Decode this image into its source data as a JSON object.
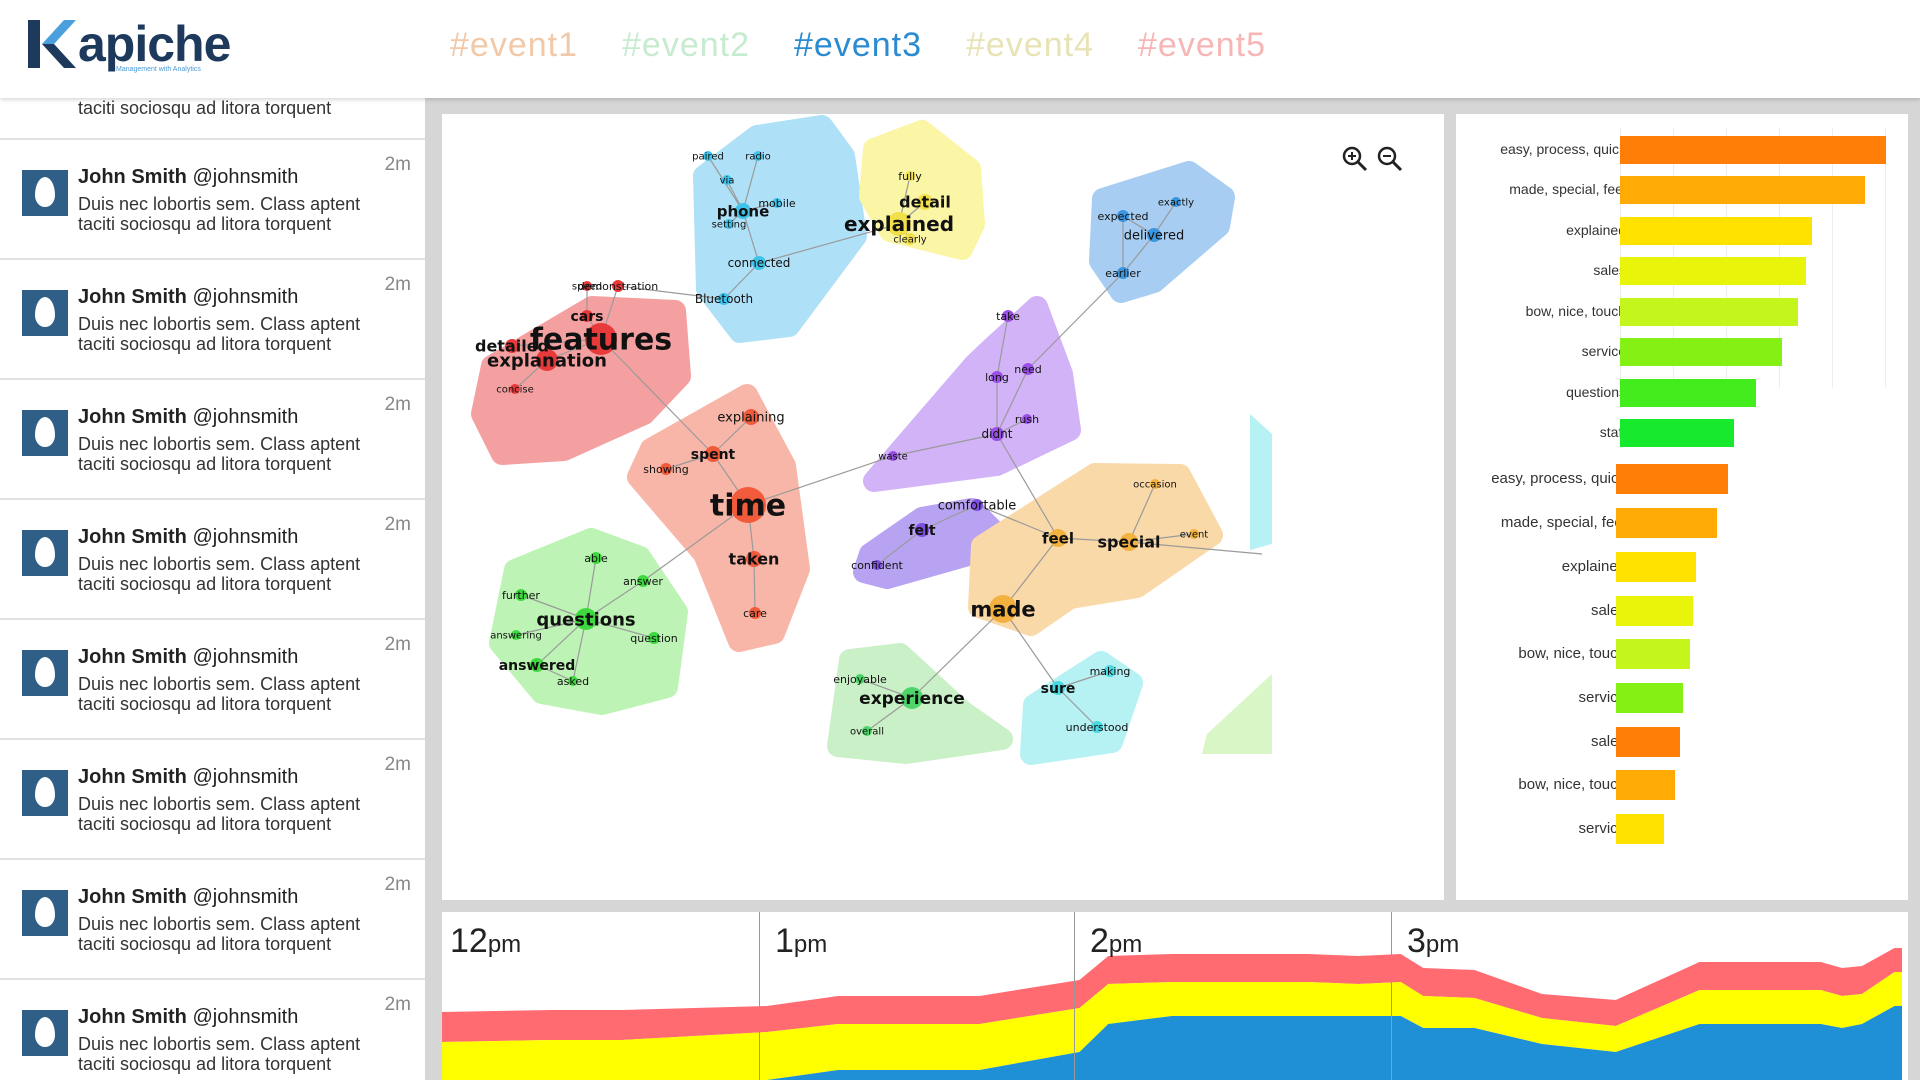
{
  "header": {
    "brand": "Kapiche",
    "brand_display": "apiche",
    "tagline": "Management with Analytics",
    "events": [
      {
        "label": "#event1",
        "color": "#f2c9a8"
      },
      {
        "label": "#event2",
        "color": "#c6ebcf"
      },
      {
        "label": "#event3",
        "color": "#2b8bd1"
      },
      {
        "label": "#event4",
        "color": "#e8e3b4"
      },
      {
        "label": "#event5",
        "color": "#f6b6b6"
      }
    ]
  },
  "feed": {
    "top_partial_text": "taciti sociosqu ad litora torquent",
    "items": [
      {
        "name": "John Smith",
        "handle": "@johnsmith",
        "time": "2m",
        "text": "Duis nec lobortis sem. Class aptent taciti sociosqu ad litora torquent"
      },
      {
        "name": "John Smith",
        "handle": "@johnsmith",
        "time": "2m",
        "text": "Duis nec lobortis sem. Class aptent taciti sociosqu ad litora torquent"
      },
      {
        "name": "John Smith",
        "handle": "@johnsmith",
        "time": "2m",
        "text": "Duis nec lobortis sem. Class aptent taciti sociosqu ad litora torquent"
      },
      {
        "name": "John Smith",
        "handle": "@johnsmith",
        "time": "2m",
        "text": "Duis nec lobortis sem. Class aptent taciti sociosqu ad litora torquent"
      },
      {
        "name": "John Smith",
        "handle": "@johnsmith",
        "time": "2m",
        "text": "Duis nec lobortis sem. Class aptent taciti sociosqu ad litora torquent"
      },
      {
        "name": "John Smith",
        "handle": "@johnsmith",
        "time": "2m",
        "text": "Duis nec lobortis sem. Class aptent taciti sociosqu ad litora torquent"
      },
      {
        "name": "John Smith",
        "handle": "@johnsmith",
        "time": "2m",
        "text": "Duis nec lobortis sem. Class aptent taciti sociosqu ad litora torquent"
      },
      {
        "name": "John Smith",
        "handle": "@johnsmith",
        "time": "2m",
        "text": "Duis nec lobortis sem. Class aptent taciti sociosqu ad litora torquent"
      }
    ]
  },
  "network": {
    "zoom_in_icon": "zoom-in-icon",
    "zoom_out_icon": "zoom-out-icon",
    "clusters": [
      {
        "id": "red",
        "color": "#f4a0a0",
        "node": "#e83a3a",
        "words": [
          "features",
          "cars",
          "speed",
          "demonstration",
          "detailed",
          "explanation",
          "concise"
        ]
      },
      {
        "id": "blue-light",
        "color": "#aee0f7",
        "node": "#3ec3ea",
        "words": [
          "paired",
          "radio",
          "via",
          "phone",
          "mobile",
          "setting",
          "connected",
          "Bluetooth"
        ]
      },
      {
        "id": "yellow",
        "color": "#fbf5a6",
        "node": "#f1e04a",
        "words": [
          "fully",
          "detail",
          "explained",
          "clearly"
        ]
      },
      {
        "id": "blue",
        "color": "#a7cdf2",
        "node": "#3c96df",
        "words": [
          "exactly",
          "expected",
          "delivered",
          "earlier"
        ]
      },
      {
        "id": "purple",
        "color": "#d2b3f7",
        "node": "#9a4fe6",
        "words": [
          "take",
          "long",
          "need",
          "didnt",
          "rush",
          "waste"
        ]
      },
      {
        "id": "salmon",
        "color": "#f8b6a8",
        "node": "#f15a3a",
        "words": [
          "explaining",
          "spent",
          "showing",
          "time",
          "taken",
          "care"
        ]
      },
      {
        "id": "violet",
        "color": "#b8a2f2",
        "node": "#7d4ee0",
        "words": [
          "comfortable",
          "felt",
          "confident"
        ]
      },
      {
        "id": "orange",
        "color": "#fad9a8",
        "node": "#f3b23f",
        "words": [
          "occasion",
          "event",
          "feel",
          "special",
          "made"
        ]
      },
      {
        "id": "green",
        "color": "#bdf3b5",
        "node": "#3ed83f",
        "words": [
          "able",
          "answer",
          "further",
          "questions",
          "answering",
          "question",
          "answered",
          "asked"
        ]
      },
      {
        "id": "green2",
        "color": "#c9f0c6",
        "node": "#4fd46a",
        "words": [
          "enjoyable",
          "experience",
          "overall"
        ]
      },
      {
        "id": "cyan",
        "color": "#b6f1f4",
        "node": "#4ad9e3",
        "words": [
          "making",
          "sure",
          "understood"
        ]
      }
    ]
  },
  "bar_panel": {
    "xlim": [
      0,
      100
    ],
    "bars": [
      {
        "label": "easy, process, quick",
        "value": 100,
        "color": "#ff7e07"
      },
      {
        "label": "made, special, feel",
        "value": 92,
        "color": "#ffaa05"
      },
      {
        "label": "explained",
        "value": 72,
        "color": "#ffe200"
      },
      {
        "label": "sales",
        "value": 70,
        "color": "#e9f40b"
      },
      {
        "label": "bow, nice, touch",
        "value": 67,
        "color": "#c4f51d"
      },
      {
        "label": "service",
        "value": 61,
        "color": "#84f013"
      },
      {
        "label": "questions",
        "value": 51,
        "color": "#43ec1c"
      },
      {
        "label": "staff",
        "value": 43,
        "color": "#17ea2d"
      },
      {
        "label": "easy, process, quick",
        "value": 42,
        "color": "#ff7e07"
      },
      {
        "label": "made, special, feel",
        "value": 38,
        "color": "#ffaa05"
      },
      {
        "label": "explained",
        "value": 30,
        "color": "#ffe200"
      },
      {
        "label": "sales",
        "value": 29,
        "color": "#e9f40b"
      },
      {
        "label": "bow, nice, touch",
        "value": 28,
        "color": "#c4f51d"
      },
      {
        "label": "service",
        "value": 25,
        "color": "#84f013"
      },
      {
        "label": "sales",
        "value": 24,
        "color": "#ff7e07"
      },
      {
        "label": "bow, nice, touch",
        "value": 22,
        "color": "#ffaa05"
      },
      {
        "label": "service",
        "value": 18,
        "color": "#ffe200"
      }
    ]
  },
  "timeline": {
    "labels": [
      {
        "hour": "12",
        "suffix": "pm"
      },
      {
        "hour": "1",
        "suffix": "pm"
      },
      {
        "hour": "2",
        "suffix": "pm"
      },
      {
        "hour": "3",
        "suffix": "pm"
      }
    ],
    "layer_colors": [
      "#1f8fd6",
      "#ffff00",
      "#ff6b70"
    ]
  }
}
